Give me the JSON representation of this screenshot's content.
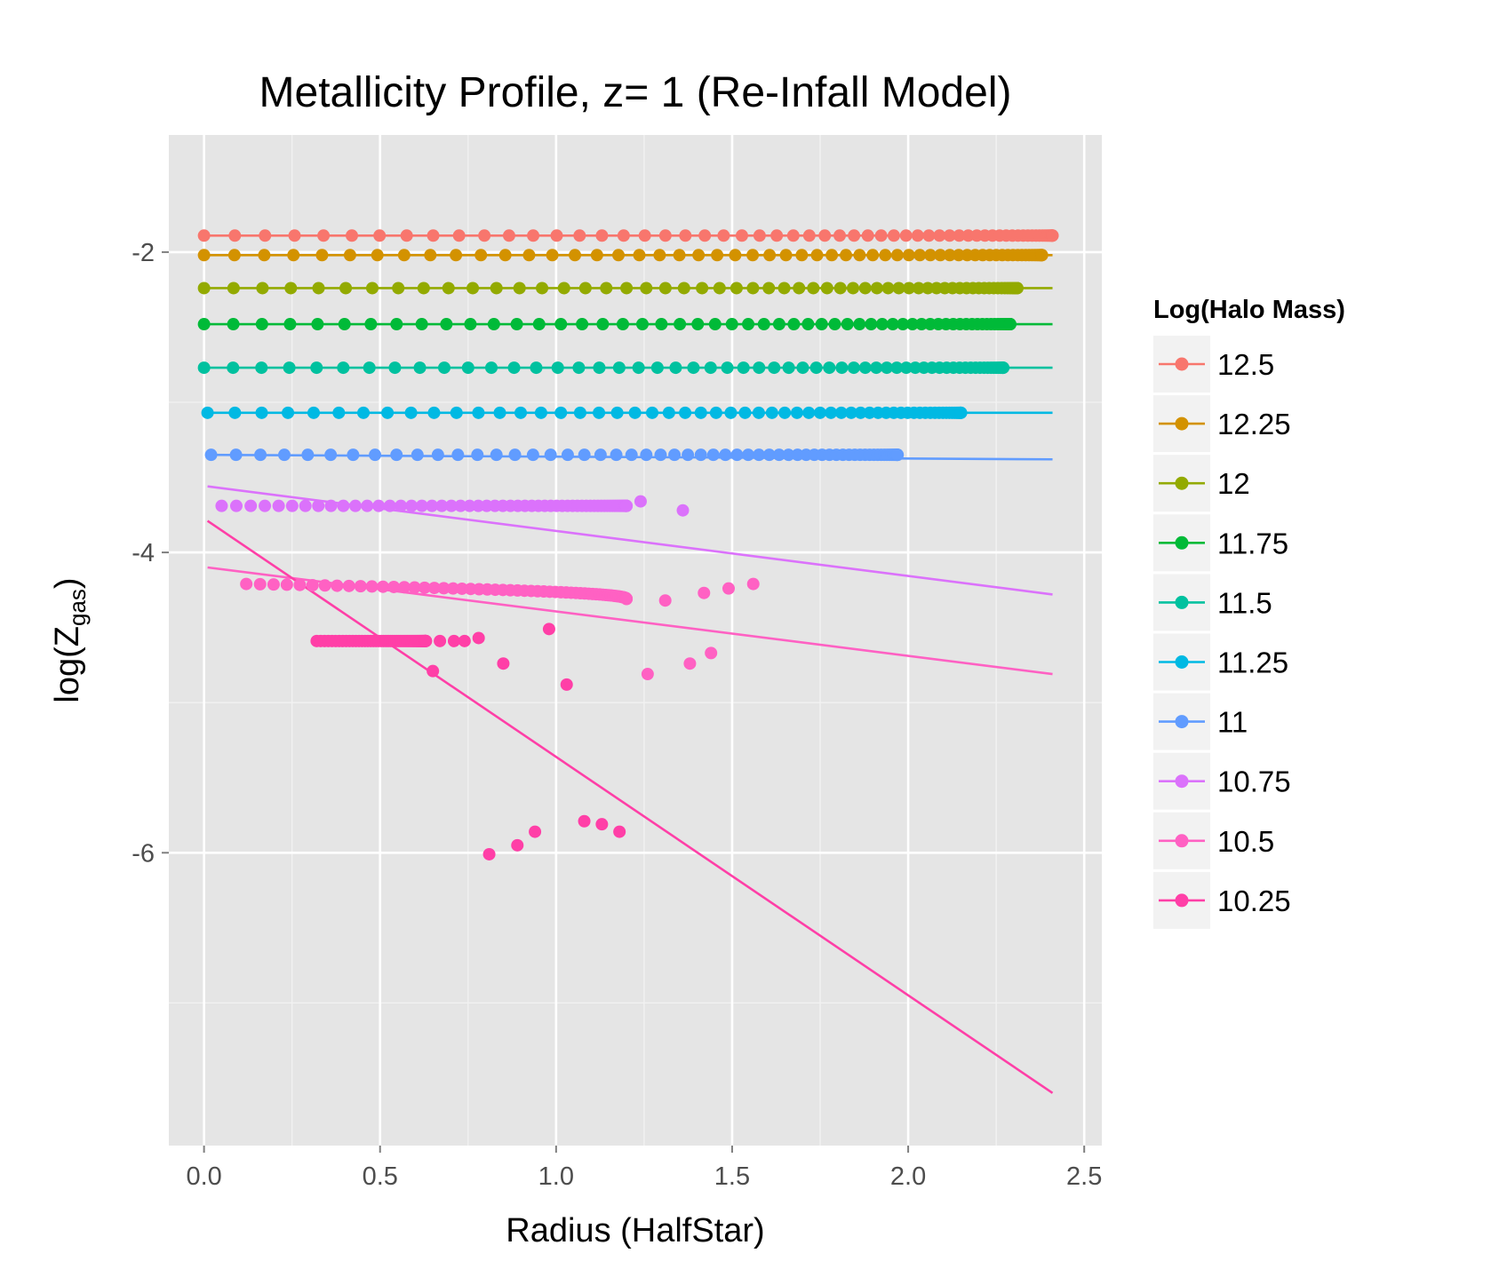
{
  "chart_data": {
    "type": "scatter",
    "title": "Metallicity Profile, z= 1 (Re-Infall Model)",
    "xlabel": "Radius (HalfStar)",
    "ylabel": {
      "main": "log",
      "symbol": "Z",
      "subscript": "gas"
    },
    "xlim": [
      -0.1,
      2.55
    ],
    "ylim": [
      -7.95,
      -1.22
    ],
    "x_ticks": [
      {
        "value": 0.0,
        "label": "0.0"
      },
      {
        "value": 0.5,
        "label": "0.5"
      },
      {
        "value": 1.0,
        "label": "1.0"
      },
      {
        "value": 1.5,
        "label": "1.5"
      },
      {
        "value": 2.0,
        "label": "2.0"
      },
      {
        "value": 2.5,
        "label": "2.5"
      }
    ],
    "y_ticks": [
      {
        "value": -2,
        "label": "-2"
      },
      {
        "value": -4,
        "label": "-4"
      },
      {
        "value": -6,
        "label": "-6"
      }
    ],
    "y_minor": [
      -3,
      -5,
      -7
    ],
    "grid": true,
    "background": "#e5e5e5",
    "legend": {
      "title": "Log(Halo Mass)",
      "position": "right"
    },
    "series": [
      {
        "name": "12.5",
        "color": "#F8766D",
        "x_range": [
          0.0,
          2.41
        ],
        "y_level": -1.89,
        "fit": {
          "x1": 0.01,
          "y1": -1.89,
          "x2": 2.41,
          "y2": -1.89
        }
      },
      {
        "name": "12.25",
        "color": "#D39200",
        "x_range": [
          0.0,
          2.38
        ],
        "y_level": -2.02,
        "fit": {
          "x1": 0.01,
          "y1": -2.02,
          "x2": 2.41,
          "y2": -2.02
        }
      },
      {
        "name": "12",
        "color": "#93AA00",
        "x_range": [
          0.0,
          2.31
        ],
        "y_level": -2.24,
        "fit": {
          "x1": 0.01,
          "y1": -2.24,
          "x2": 2.41,
          "y2": -2.24
        }
      },
      {
        "name": "11.75",
        "color": "#00BA38",
        "x_range": [
          0.0,
          2.29
        ],
        "y_level": -2.48,
        "fit": {
          "x1": 0.01,
          "y1": -2.48,
          "x2": 2.41,
          "y2": -2.48
        }
      },
      {
        "name": "11.5",
        "color": "#00C19F",
        "x_range": [
          0.0,
          2.27
        ],
        "y_level": -2.77,
        "fit": {
          "x1": 0.01,
          "y1": -2.77,
          "x2": 2.41,
          "y2": -2.77
        }
      },
      {
        "name": "11.25",
        "color": "#00B9E3",
        "x_range": [
          0.01,
          2.15
        ],
        "y_level": -3.07,
        "fit": {
          "x1": 0.01,
          "y1": -3.07,
          "x2": 2.41,
          "y2": -3.07
        }
      },
      {
        "name": "11",
        "color": "#619CFF",
        "x_range": [
          0.02,
          1.97
        ],
        "y_level": -3.35,
        "fit": {
          "x1": 0.01,
          "y1": -3.35,
          "x2": 2.41,
          "y2": -3.38
        }
      },
      {
        "name": "10.75",
        "color": "#DB72FB",
        "x_range": [
          0.05,
          1.2
        ],
        "y_level": -3.69,
        "extra": [
          {
            "x": 1.24,
            "y": -3.66
          },
          {
            "x": 1.36,
            "y": -3.72
          }
        ],
        "fit": {
          "x1": 0.01,
          "y1": -3.56,
          "x2": 2.41,
          "y2": -4.28
        }
      },
      {
        "name": "10.5",
        "color": "#FF61C3",
        "x_range": [
          0.12,
          1.2
        ],
        "y_start": -4.21,
        "y_end": -4.31,
        "extra": [
          {
            "x": 1.31,
            "y": -4.32
          },
          {
            "x": 1.42,
            "y": -4.27
          },
          {
            "x": 1.49,
            "y": -4.24
          },
          {
            "x": 1.56,
            "y": -4.21
          },
          {
            "x": 1.26,
            "y": -4.81
          },
          {
            "x": 1.38,
            "y": -4.74
          },
          {
            "x": 1.44,
            "y": -4.67
          }
        ],
        "fit": {
          "x1": 0.01,
          "y1": -4.1,
          "x2": 2.41,
          "y2": -4.81
        }
      },
      {
        "name": "10.25",
        "color": "#FF3FA7",
        "x_range": [
          0.32,
          0.63
        ],
        "y_level": -4.59,
        "extra": [
          {
            "x": 0.67,
            "y": -4.59
          },
          {
            "x": 0.71,
            "y": -4.59
          },
          {
            "x": 0.74,
            "y": -4.59
          },
          {
            "x": 0.78,
            "y": -4.57
          },
          {
            "x": 0.98,
            "y": -4.51
          },
          {
            "x": 0.65,
            "y": -4.79
          },
          {
            "x": 0.85,
            "y": -4.74
          },
          {
            "x": 1.03,
            "y": -4.88
          },
          {
            "x": 0.81,
            "y": -6.01
          },
          {
            "x": 0.89,
            "y": -5.95
          },
          {
            "x": 0.94,
            "y": -5.86
          },
          {
            "x": 1.08,
            "y": -5.79
          },
          {
            "x": 1.13,
            "y": -5.81
          },
          {
            "x": 1.18,
            "y": -5.86
          }
        ],
        "fit": {
          "x1": 0.01,
          "y1": -3.79,
          "x2": 2.41,
          "y2": -7.6
        }
      }
    ]
  }
}
